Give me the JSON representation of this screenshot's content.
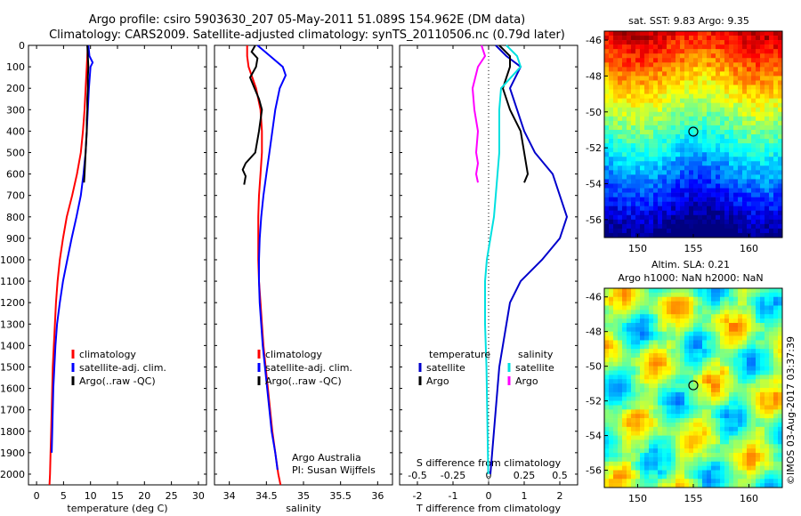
{
  "header": {
    "line1": "Argo profile: csiro 5903630_207 05-May-2011 51.089S 154.962E (DM data)",
    "line2": "Climatology: CARS2009. Satellite-adjusted climatology: synTS_20110506.nc (0.79d later)"
  },
  "panels": {
    "sst_title": "sat. SST: 9.83 Argo: 9.35",
    "sla_title1": "Altim. SLA: 0.21",
    "sla_title2": "Argo h1000: NaN h2000: NaN",
    "credit": "Argo Australia",
    "pi": "PI: Susan Wijffels",
    "watermark": "©IMOS 03-Aug-2017 03:37:39"
  },
  "colors": {
    "climatology": "#ff0000",
    "satellite": "#0000ff",
    "argo": "#000000",
    "sat_t": "#0000cc",
    "sat_s": "#00e0e0",
    "argo_s": "#ff00ff"
  },
  "chart_data": [
    {
      "type": "line",
      "xlabel": "temperature (deg C)",
      "xticks": [
        "0",
        "5",
        "10",
        "15",
        "20",
        "25",
        "30"
      ],
      "xlim": [
        -1.5,
        31.5
      ],
      "ylim": [
        2050,
        0
      ],
      "yticks": [
        "0",
        "100",
        "200",
        "300",
        "400",
        "500",
        "600",
        "700",
        "800",
        "900",
        "1000",
        "1100",
        "1200",
        "1300",
        "1400",
        "1500",
        "1600",
        "1700",
        "1800",
        "1900",
        "2000"
      ],
      "legend": [
        "climatology",
        "satellite-adj. clim.",
        "Argo(..raw -QC)"
      ],
      "series": [
        {
          "name": "climatology",
          "depth": [
            0,
            100,
            200,
            300,
            400,
            500,
            600,
            700,
            800,
            900,
            1000,
            1100,
            1200,
            1300,
            1400,
            1500,
            1600,
            1700,
            1800,
            1900,
            2000,
            2050
          ],
          "values": [
            9.5,
            9.3,
            9.1,
            8.9,
            8.6,
            8.2,
            7.5,
            6.6,
            5.6,
            4.9,
            4.3,
            3.9,
            3.6,
            3.4,
            3.2,
            3.0,
            2.9,
            2.8,
            2.7,
            2.6,
            2.5,
            2.4
          ]
        },
        {
          "name": "satellite-adj. clim.",
          "depth": [
            0,
            50,
            80,
            100,
            200,
            300,
            400,
            500,
            600,
            700,
            800,
            900,
            1000,
            1100,
            1200,
            1300,
            1400,
            1500,
            1600,
            1700,
            1800,
            1900
          ],
          "values": [
            9.6,
            9.8,
            10.4,
            10.0,
            9.7,
            9.5,
            9.3,
            9.1,
            8.7,
            8.2,
            7.4,
            6.5,
            5.7,
            4.9,
            4.3,
            3.8,
            3.5,
            3.3,
            3.1,
            3.0,
            2.9,
            2.8
          ]
        },
        {
          "name": "Argo(..raw -QC)",
          "depth": [
            0,
            50,
            100,
            150,
            200,
            250,
            300,
            350,
            400,
            450,
            500,
            550,
            600,
            640
          ],
          "values": [
            9.4,
            9.5,
            9.6,
            9.5,
            9.5,
            9.4,
            9.4,
            9.3,
            9.3,
            9.2,
            9.1,
            9.0,
            8.9,
            8.8
          ]
        }
      ]
    },
    {
      "type": "line",
      "xlabel": "salinity",
      "xticks": [
        "34",
        "34.5",
        "35",
        "35.5",
        "36"
      ],
      "xlim": [
        33.8,
        36.2
      ],
      "ylim": [
        2050,
        0
      ],
      "legend": [
        "climatology",
        "satellite-adj. clim.",
        "Argo(..raw -QC)"
      ],
      "series": [
        {
          "name": "climatology",
          "depth": [
            0,
            50,
            100,
            200,
            300,
            400,
            500,
            600,
            700,
            800,
            900,
            1000,
            1100,
            1200,
            1300,
            1400,
            1500,
            1600,
            1700,
            1800,
            1900,
            2000,
            2050
          ],
          "values": [
            34.24,
            34.24,
            34.26,
            34.36,
            34.42,
            34.44,
            34.44,
            34.42,
            34.4,
            34.39,
            34.39,
            34.39,
            34.4,
            34.42,
            34.44,
            34.46,
            34.49,
            34.52,
            34.55,
            34.58,
            34.62,
            34.66,
            34.69
          ]
        },
        {
          "name": "satellite-adj. clim.",
          "depth": [
            0,
            50,
            100,
            140,
            200,
            300,
            400,
            500,
            600,
            700,
            800,
            900,
            1000,
            1100,
            1200,
            1300,
            1400,
            1500,
            1600,
            1700,
            1800,
            1900,
            1980
          ],
          "values": [
            34.38,
            34.55,
            34.72,
            34.76,
            34.68,
            34.62,
            34.58,
            34.54,
            34.5,
            34.46,
            34.43,
            34.41,
            34.4,
            34.4,
            34.41,
            34.43,
            34.45,
            34.48,
            34.51,
            34.54,
            34.57,
            34.62,
            34.65
          ]
        },
        {
          "name": "Argo(..raw -QC)",
          "depth": [
            0,
            30,
            60,
            100,
            150,
            200,
            250,
            300,
            400,
            500,
            550,
            580,
            610,
            650
          ],
          "values": [
            34.35,
            34.3,
            34.38,
            34.36,
            34.28,
            34.34,
            34.4,
            34.44,
            34.4,
            34.35,
            34.22,
            34.18,
            34.22,
            34.2
          ]
        }
      ]
    },
    {
      "type": "line",
      "xlabel": "T difference from climatology",
      "xlabel_top": "S difference from climatology",
      "xticks": [
        "-2",
        "-1",
        "0",
        "1",
        "2"
      ],
      "xticks_top": [
        "-0.5",
        "-0.25",
        "0",
        "0.25",
        "0.5"
      ],
      "xlim": [
        -2.5,
        2.5
      ],
      "ylim": [
        2050,
        0
      ],
      "legend_headers": [
        "temperature",
        "salinity"
      ],
      "legend": [
        "satellite",
        "Argo",
        "satellite",
        "Argo"
      ],
      "series": [
        {
          "name": "satellite",
          "depth": [
            0,
            50,
            100,
            200,
            300,
            400,
            500,
            600,
            700,
            800,
            900,
            1000,
            1100,
            1200,
            1300,
            1400,
            1500,
            1600,
            1700,
            1800,
            1900,
            2000
          ],
          "values": [
            0.2,
            0.5,
            0.9,
            0.6,
            0.8,
            1.0,
            1.3,
            1.8,
            2.0,
            2.2,
            2.0,
            1.5,
            0.9,
            0.6,
            0.5,
            0.4,
            0.3,
            0.25,
            0.2,
            0.15,
            0.1,
            0.05
          ]
        },
        {
          "name": "Argo",
          "depth": [
            0,
            50,
            100,
            200,
            300,
            400,
            500,
            600,
            640
          ],
          "values": [
            0.3,
            0.6,
            0.6,
            0.4,
            0.6,
            0.9,
            1.0,
            1.1,
            1.0
          ]
        },
        {
          "name": "satellite",
          "depth": [
            0,
            50,
            100,
            200,
            300,
            400,
            500,
            600,
            700,
            800,
            900,
            1000,
            1100,
            1200,
            1300,
            1400,
            1500,
            1600,
            1700,
            1800,
            1900,
            2000
          ],
          "values": [
            0.5,
            0.8,
            0.9,
            0.35,
            0.3,
            0.3,
            0.3,
            0.25,
            0.2,
            0.15,
            0.05,
            -0.05,
            -0.1,
            -0.1,
            -0.1,
            -0.08,
            -0.06,
            -0.05,
            -0.04,
            -0.03,
            -0.02,
            -0.01
          ]
        },
        {
          "name": "Argo",
          "depth": [
            0,
            50,
            100,
            200,
            300,
            400,
            500,
            550,
            600,
            640
          ],
          "values": [
            -0.2,
            -0.1,
            -0.3,
            -0.45,
            -0.4,
            -0.3,
            -0.35,
            -0.3,
            -0.35,
            -0.3
          ]
        }
      ]
    },
    {
      "type": "heatmap",
      "title": "sat. SST: 9.83 Argo: 9.35",
      "xticks": [
        "150",
        "155",
        "160"
      ],
      "yticks": [
        "-46",
        "-48",
        "-50",
        "-52",
        "-54",
        "-56"
      ],
      "xlim": [
        147,
        163
      ],
      "ylim": [
        -57,
        -45.5
      ],
      "argo_position": [
        155.0,
        -51.1
      ]
    },
    {
      "type": "heatmap",
      "title": "Altim. SLA: 0.21",
      "xticks": [
        "150",
        "155",
        "160"
      ],
      "yticks": [
        "-46",
        "-48",
        "-50",
        "-52",
        "-54",
        "-56"
      ],
      "xlim": [
        147,
        163
      ],
      "ylim": [
        -57,
        -45.5
      ],
      "argo_position": [
        155.0,
        -51.1
      ]
    }
  ]
}
